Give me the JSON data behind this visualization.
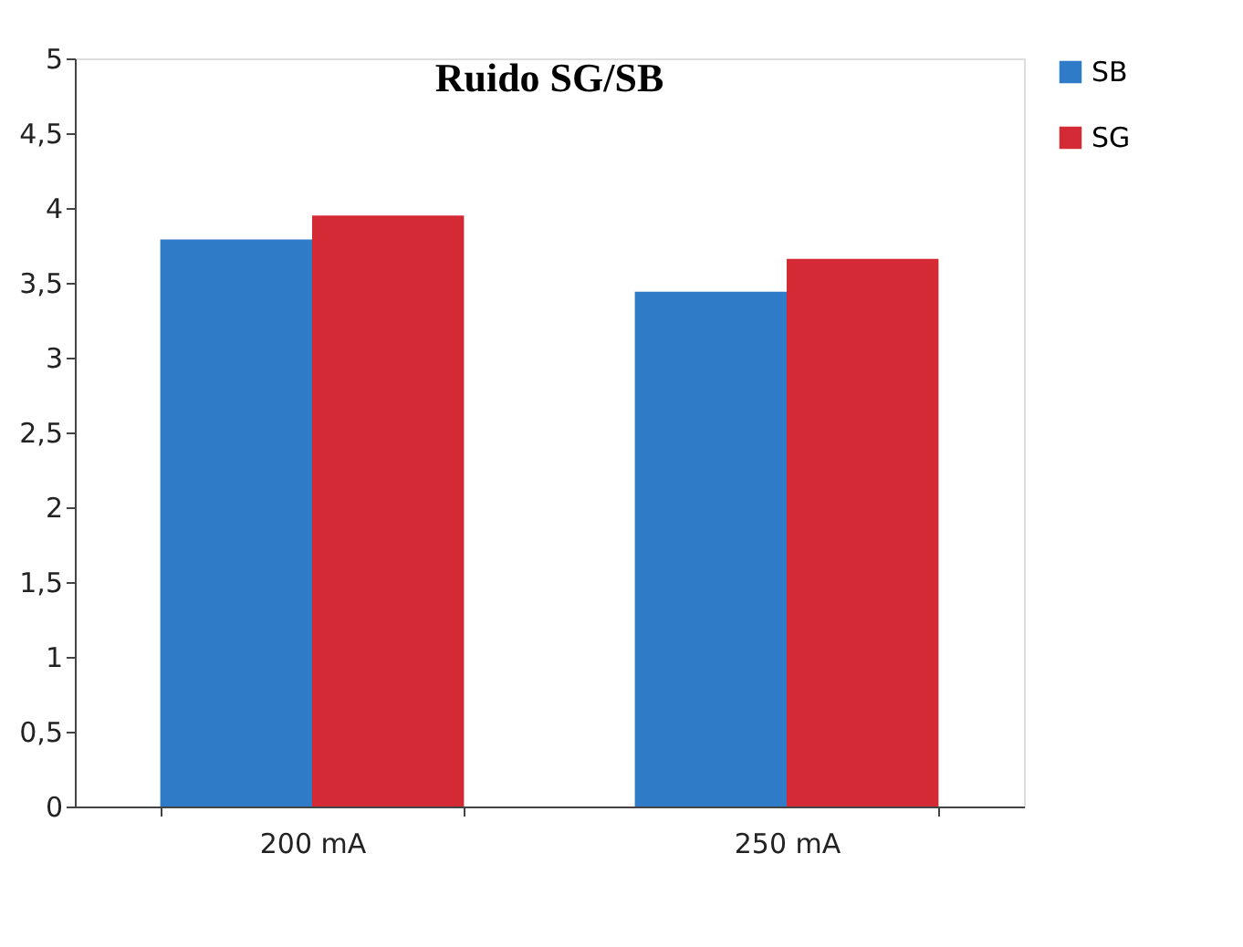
{
  "chart_data": {
    "type": "bar",
    "title": "Ruido SG/SB",
    "categories": [
      "200 mA",
      "250 mA"
    ],
    "series": [
      {
        "name": "SB",
        "color": "#2f7bc8",
        "values": [
          3.79,
          3.44
        ]
      },
      {
        "name": "SG",
        "color": "#d42a35",
        "values": [
          3.95,
          3.66
        ]
      }
    ],
    "ylim": [
      0,
      5
    ],
    "yticks": [
      0,
      {
        "value": 0.5,
        "label": "0,5"
      },
      1,
      {
        "value": 1.5,
        "label": "1,5"
      },
      2,
      {
        "value": 2.5,
        "label": "2,5"
      },
      3,
      {
        "value": 3.5,
        "label": "3,5"
      },
      4,
      {
        "value": 4.5,
        "label": "4,5"
      },
      5
    ],
    "grid": false,
    "legend": "right"
  }
}
